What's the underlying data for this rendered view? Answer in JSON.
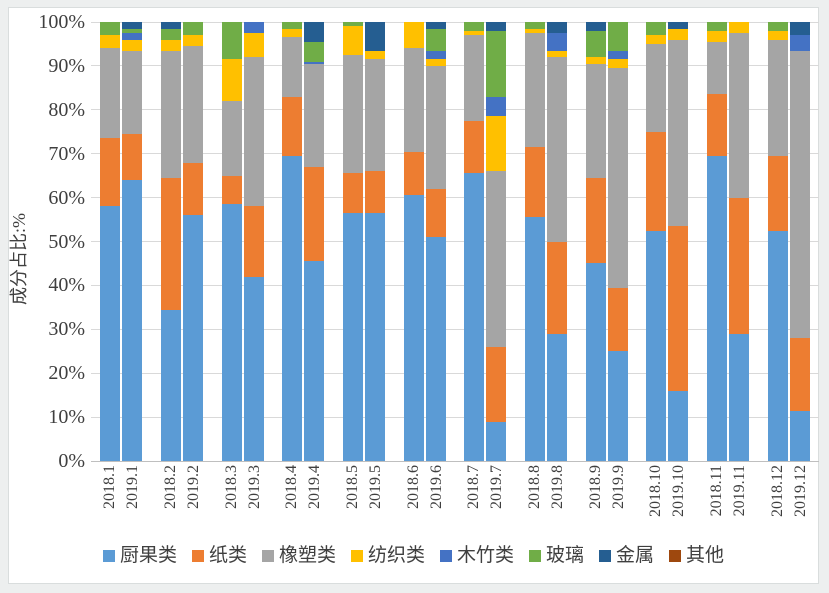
{
  "y_axis": {
    "title": "成分占比:%",
    "ticks": [
      "100%",
      "90%",
      "80%",
      "70%",
      "60%",
      "50%",
      "40%",
      "30%",
      "20%",
      "10%",
      "0%"
    ]
  },
  "legend": {
    "items": [
      {
        "label": "厨果类",
        "color": "#5B9BD5"
      },
      {
        "label": "纸类",
        "color": "#ED7D31"
      },
      {
        "label": "橡塑类",
        "color": "#A5A5A5"
      },
      {
        "label": "纺织类",
        "color": "#FFC000"
      },
      {
        "label": "木竹类",
        "color": "#4472C4"
      },
      {
        "label": "玻璃",
        "color": "#70AD47"
      },
      {
        "label": "金属",
        "color": "#255E91"
      },
      {
        "label": "其他",
        "color": "#9E480E"
      }
    ]
  },
  "chart_data": {
    "type": "bar",
    "stacked": true,
    "percent_stacked": true,
    "unit": "%",
    "title": "",
    "xlabel": "",
    "ylabel": "成分占比:%",
    "ylim": [
      0,
      100
    ],
    "grid": true,
    "legend_position": "bottom",
    "categories": [
      "2018.1",
      "2019.1",
      "2018.2",
      "2019.2",
      "2018.3",
      "2019.3",
      "2018.4",
      "2019.4",
      "2018.5",
      "2019.5",
      "2018.6",
      "2019.6",
      "2018.7",
      "2019.7",
      "2018.8",
      "2019.8",
      "2018.9",
      "2019.9",
      "2018.10",
      "2019.10",
      "2018.11",
      "2019.11",
      "2018.12",
      "2019.12"
    ],
    "group_pairs": true,
    "series": [
      {
        "name": "厨果类",
        "color": "#5B9BD5",
        "values": [
          58,
          64,
          34.5,
          56,
          58.5,
          42,
          69.5,
          45.5,
          56.5,
          56.5,
          60.5,
          51,
          65.5,
          9,
          55.5,
          29,
          45,
          25,
          52.5,
          16,
          69.5,
          29,
          52.5,
          11.5
        ]
      },
      {
        "name": "纸类",
        "color": "#ED7D31",
        "values": [
          15.5,
          10.5,
          30,
          12,
          6.5,
          16,
          13.5,
          21.5,
          9,
          9.5,
          10,
          11,
          12,
          17,
          16,
          21,
          19.5,
          14.5,
          22.5,
          37.5,
          14,
          31,
          17,
          16.5
        ]
      },
      {
        "name": "橡塑类",
        "color": "#A5A5A5",
        "values": [
          20.5,
          19,
          29,
          26.5,
          17,
          34,
          13.5,
          23.5,
          27,
          25.5,
          23.5,
          28,
          19.5,
          40,
          26,
          42,
          26,
          50,
          20,
          42.5,
          12,
          37.5,
          26.5,
          65.5
        ]
      },
      {
        "name": "纺织类",
        "color": "#FFC000",
        "values": [
          3,
          2.5,
          2.5,
          2.5,
          9.5,
          5.5,
          2,
          0,
          6.5,
          2,
          6,
          1.5,
          1,
          12.5,
          1,
          1.5,
          1.5,
          2,
          2,
          2.5,
          2.5,
          2.5,
          2,
          0
        ]
      },
      {
        "name": "木竹类",
        "color": "#4472C4",
        "values": [
          0,
          1.5,
          0,
          0,
          0,
          2.5,
          0,
          0.5,
          0,
          0,
          0,
          2,
          0,
          4.5,
          0,
          4,
          0,
          2,
          0,
          0,
          0,
          0,
          0,
          3.5
        ]
      },
      {
        "name": "玻璃",
        "color": "#70AD47",
        "values": [
          3,
          1,
          2.5,
          3,
          8.5,
          0,
          1.5,
          4.5,
          1,
          0,
          0,
          5,
          2,
          15,
          1.5,
          0,
          6,
          6.5,
          3,
          0,
          2,
          0,
          2,
          0
        ]
      },
      {
        "name": "金属",
        "color": "#255E91",
        "values": [
          0,
          1.5,
          1.5,
          0,
          0,
          0,
          0,
          4.5,
          0,
          6.5,
          0,
          1.5,
          0,
          2,
          0,
          2.5,
          2,
          0,
          0,
          1.5,
          0,
          0,
          0,
          3
        ]
      },
      {
        "name": "其他",
        "color": "#9E480E",
        "values": [
          0,
          0,
          0,
          0,
          0,
          0,
          0,
          0,
          0,
          0,
          0,
          0,
          0,
          0,
          0,
          0,
          0,
          0,
          0,
          0,
          0,
          0,
          0,
          0
        ]
      }
    ]
  }
}
